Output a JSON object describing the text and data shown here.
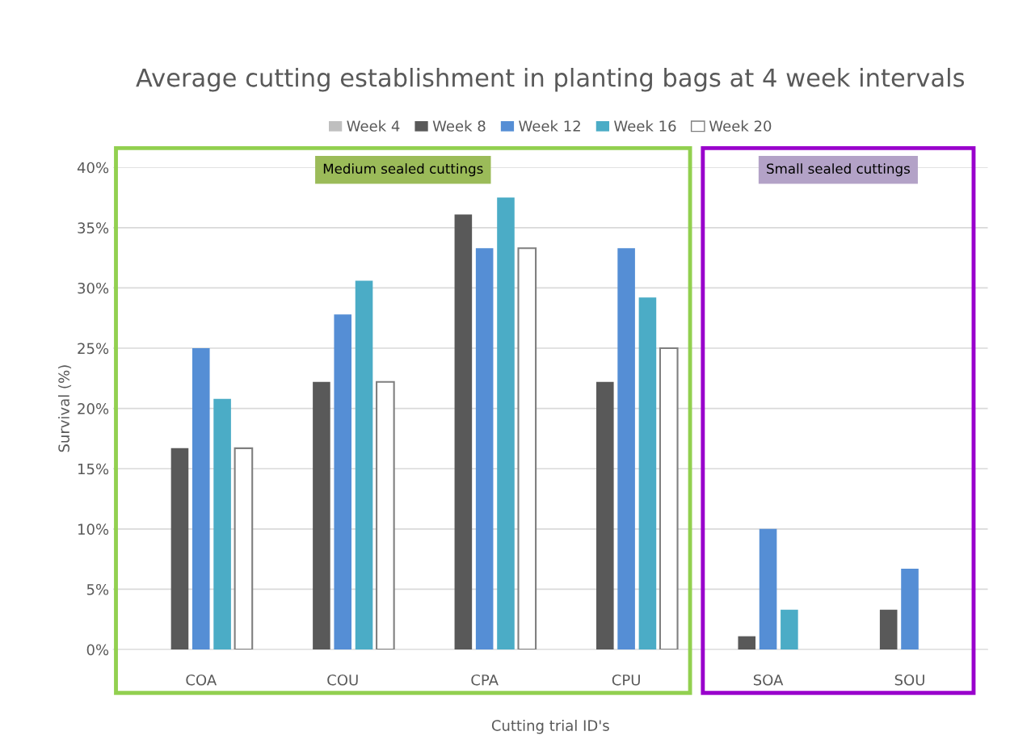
{
  "chart_data": {
    "type": "bar",
    "title": "Average cutting establishment in planting bags at 4 week intervals",
    "xlabel": "Cutting trial ID's",
    "ylabel": "Survival (%)",
    "categories": [
      "COA",
      "COU",
      "CPA",
      "CPU",
      "SOA",
      "SOU"
    ],
    "series": [
      {
        "name": "Week 4",
        "color": "#bfbfbf",
        "values": [
          null,
          null,
          null,
          null,
          null,
          null
        ]
      },
      {
        "name": "Week 8",
        "color": "#595959",
        "values": [
          16.7,
          22.2,
          36.1,
          22.2,
          1.1,
          3.3
        ]
      },
      {
        "name": "Week 12",
        "color": "#558ed5",
        "values": [
          25,
          27.8,
          33.3,
          33.3,
          10,
          6.7
        ]
      },
      {
        "name": "Week 16",
        "color": "#4bacc6",
        "values": [
          20.8,
          30.6,
          37.5,
          29.2,
          3.3,
          null
        ]
      },
      {
        "name": "Week 20",
        "color": "#ffffff",
        "values": [
          16.7,
          22.2,
          33.3,
          25,
          null,
          null
        ]
      }
    ],
    "ylim": [
      0,
      40
    ],
    "yticks": [
      {
        "value": 0,
        "label": "0%"
      },
      {
        "value": 5,
        "label": "5%"
      },
      {
        "value": 10,
        "label": "10%"
      },
      {
        "value": 15,
        "label": "15%"
      },
      {
        "value": 20,
        "label": "20%"
      },
      {
        "value": 25,
        "label": "25%"
      },
      {
        "value": 30,
        "label": "30%"
      },
      {
        "value": 35,
        "label": "35%"
      },
      {
        "value": 40,
        "label": "40%"
      }
    ],
    "grid": "y",
    "legend": "top",
    "annotations": [
      "Medium sealed cuttings",
      "Small sealed cuttings"
    ]
  }
}
